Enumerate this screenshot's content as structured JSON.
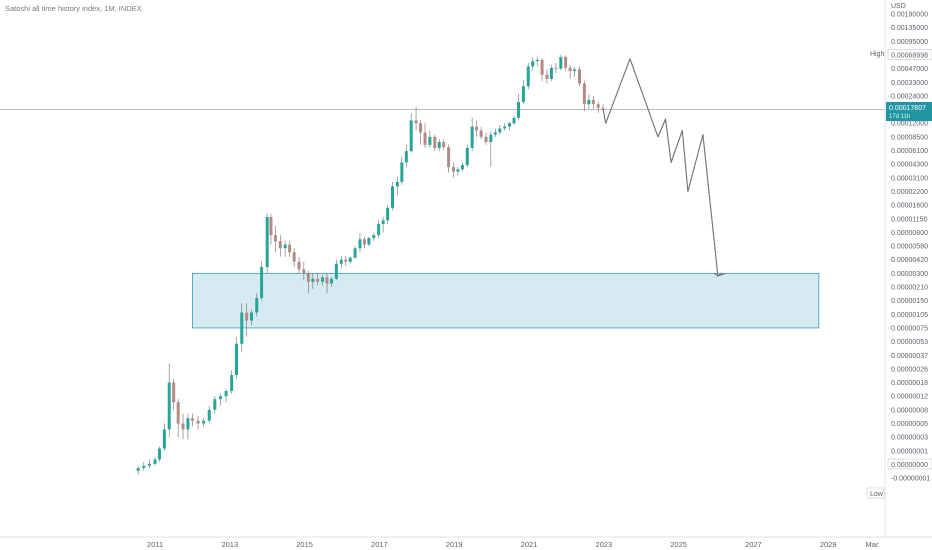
{
  "title": "Satoshi all time history index, 1M, INDEX",
  "currency": "USD",
  "price_tag": {
    "value": "0.00017807",
    "countdown": "17d 11h"
  },
  "high_label": {
    "label": "High",
    "value": "0.00068998"
  },
  "low_label": {
    "label": "Low",
    "value": "0.00000000"
  },
  "colors": {
    "up": "#26a69a",
    "down": "#b58a84",
    "wick": "#6d6d6d",
    "box_fill": "#cfe6ee",
    "box_stroke": "#3a9fae",
    "projection": "#6f6f6f",
    "price_tag_bg": "#2196a3",
    "background": "#ffffff"
  },
  "chart_data": {
    "type": "candlestick",
    "title": "Satoshi all time history index, 1M, INDEX",
    "y_axis_ticks": [
      "0.00190000",
      "0.00135000",
      "0.00095000",
      "0.00068998",
      "0.00047000",
      "0.00033000",
      "0.00024000",
      "0.00017807",
      "0.00012000",
      "0.00008500",
      "0.00006100",
      "0.00004300",
      "0.00003100",
      "0.00002200",
      "0.00001600",
      "0.00001150",
      "0.00000800",
      "0.00000580",
      "0.00000420",
      "0.00000300",
      "0.00000210",
      "0.00000150",
      "0.00000105",
      "0.00000075",
      "0.00000053",
      "0.00000037",
      "0.00000026",
      "0.00000018",
      "0.00000012",
      "0.00000008",
      "0.00000005",
      "0.00000003",
      "0.00000001",
      "0.00000000",
      "-0.00000001"
    ],
    "x_axis_ticks": [
      "2011",
      "2013",
      "2015",
      "2017",
      "2019",
      "2021",
      "2023",
      "2025",
      "2027",
      "2029",
      "Mar"
    ],
    "candles": [
      {
        "t": 2010.55,
        "o": 2e-09,
        "h": 3e-09,
        "l": 1.5e-09,
        "c": 2.5e-09
      },
      {
        "t": 2010.7,
        "o": 2.5e-09,
        "h": 4e-09,
        "l": 2e-09,
        "c": 3e-09
      },
      {
        "t": 2010.85,
        "o": 3e-09,
        "h": 5e-09,
        "l": 2.5e-09,
        "c": 3.5e-09
      },
      {
        "t": 2011.0,
        "o": 3.5e-09,
        "h": 6e-09,
        "l": 3e-09,
        "c": 5e-09
      },
      {
        "t": 2011.12,
        "o": 5e-09,
        "h": 1.4e-08,
        "l": 4e-09,
        "c": 1.2e-08
      },
      {
        "t": 2011.25,
        "o": 1.2e-08,
        "h": 5e-08,
        "l": 1e-08,
        "c": 4e-08
      },
      {
        "t": 2011.38,
        "o": 4e-08,
        "h": 3e-07,
        "l": 3e-08,
        "c": 1.8e-07
      },
      {
        "t": 2011.5,
        "o": 1.8e-07,
        "h": 2e-07,
        "l": 8e-08,
        "c": 1e-07
      },
      {
        "t": 2011.62,
        "o": 1e-07,
        "h": 1.1e-07,
        "l": 3e-08,
        "c": 5e-08
      },
      {
        "t": 2011.75,
        "o": 5e-08,
        "h": 7e-08,
        "l": 2.5e-08,
        "c": 4e-08
      },
      {
        "t": 2011.88,
        "o": 4e-08,
        "h": 7e-08,
        "l": 2.5e-08,
        "c": 6e-08
      },
      {
        "t": 2012.0,
        "o": 6e-08,
        "h": 7e-08,
        "l": 4.5e-08,
        "c": 5.5e-08
      },
      {
        "t": 2012.15,
        "o": 5.5e-08,
        "h": 6.5e-08,
        "l": 4e-08,
        "c": 5e-08
      },
      {
        "t": 2012.3,
        "o": 5e-08,
        "h": 6e-08,
        "l": 4.5e-08,
        "c": 5.5e-08
      },
      {
        "t": 2012.45,
        "o": 5.5e-08,
        "h": 9e-08,
        "l": 5e-08,
        "c": 8e-08
      },
      {
        "t": 2012.6,
        "o": 8e-08,
        "h": 1.2e-07,
        "l": 7e-08,
        "c": 1.1e-07
      },
      {
        "t": 2012.75,
        "o": 1.1e-07,
        "h": 1.3e-07,
        "l": 9e-08,
        "c": 1.2e-07
      },
      {
        "t": 2012.9,
        "o": 1.2e-07,
        "h": 1.5e-07,
        "l": 1e-07,
        "c": 1.4e-07
      },
      {
        "t": 2013.05,
        "o": 1.4e-07,
        "h": 2.5e-07,
        "l": 1.3e-07,
        "c": 2.2e-07
      },
      {
        "t": 2013.18,
        "o": 2.2e-07,
        "h": 6e-07,
        "l": 2e-07,
        "c": 5e-07
      },
      {
        "t": 2013.32,
        "o": 5e-07,
        "h": 1.4e-06,
        "l": 4e-07,
        "c": 1.1e-06
      },
      {
        "t": 2013.45,
        "o": 1.1e-06,
        "h": 1.4e-06,
        "l": 6e-07,
        "c": 9e-07
      },
      {
        "t": 2013.58,
        "o": 9e-07,
        "h": 1.2e-06,
        "l": 8e-07,
        "c": 1.1e-06
      },
      {
        "t": 2013.72,
        "o": 1.1e-06,
        "h": 1.8e-06,
        "l": 1e-06,
        "c": 1.6e-06
      },
      {
        "t": 2013.85,
        "o": 1.6e-06,
        "h": 4e-06,
        "l": 1.5e-06,
        "c": 3.5e-06
      },
      {
        "t": 2014.0,
        "o": 3.5e-06,
        "h": 1.3e-05,
        "l": 3e-06,
        "c": 1.2e-05
      },
      {
        "t": 2014.1,
        "o": 1.2e-05,
        "h": 1.3e-05,
        "l": 6e-06,
        "c": 7.5e-06
      },
      {
        "t": 2014.22,
        "o": 7.5e-06,
        "h": 9.5e-06,
        "l": 5e-06,
        "c": 6.5e-06
      },
      {
        "t": 2014.35,
        "o": 6.5e-06,
        "h": 7.5e-06,
        "l": 4.5e-06,
        "c": 5.5e-06
      },
      {
        "t": 2014.48,
        "o": 5.5e-06,
        "h": 6.5e-06,
        "l": 4.5e-06,
        "c": 6e-06
      },
      {
        "t": 2014.6,
        "o": 6e-06,
        "h": 6.5e-06,
        "l": 4.5e-06,
        "c": 5e-06
      },
      {
        "t": 2014.72,
        "o": 5e-06,
        "h": 5.5e-06,
        "l": 3.5e-06,
        "c": 4e-06
      },
      {
        "t": 2014.85,
        "o": 4e-06,
        "h": 4.5e-06,
        "l": 3e-06,
        "c": 3.3e-06
      },
      {
        "t": 2014.98,
        "o": 3.3e-06,
        "h": 4e-06,
        "l": 2.5e-06,
        "c": 3e-06
      },
      {
        "t": 2015.1,
        "o": 3e-06,
        "h": 3.2e-06,
        "l": 1.8e-06,
        "c": 2.4e-06
      },
      {
        "t": 2015.22,
        "o": 2.4e-06,
        "h": 3e-06,
        "l": 2e-06,
        "c": 2.6e-06
      },
      {
        "t": 2015.35,
        "o": 2.6e-06,
        "h": 3e-06,
        "l": 2.2e-06,
        "c": 2.4e-06
      },
      {
        "t": 2015.48,
        "o": 2.4e-06,
        "h": 2.9e-06,
        "l": 2.2e-06,
        "c": 2.7e-06
      },
      {
        "t": 2015.6,
        "o": 2.7e-06,
        "h": 3e-06,
        "l": 1.8e-06,
        "c": 2.3e-06
      },
      {
        "t": 2015.72,
        "o": 2.3e-06,
        "h": 2.7e-06,
        "l": 2.1e-06,
        "c": 2.6e-06
      },
      {
        "t": 2015.85,
        "o": 2.6e-06,
        "h": 4.2e-06,
        "l": 2.5e-06,
        "c": 3.8e-06
      },
      {
        "t": 2015.98,
        "o": 3.8e-06,
        "h": 4.6e-06,
        "l": 3.4e-06,
        "c": 4.2e-06
      },
      {
        "t": 2016.1,
        "o": 4.2e-06,
        "h": 4.6e-06,
        "l": 3.6e-06,
        "c": 4e-06
      },
      {
        "t": 2016.22,
        "o": 4e-06,
        "h": 4.5e-06,
        "l": 3.8e-06,
        "c": 4.4e-06
      },
      {
        "t": 2016.35,
        "o": 4.4e-06,
        "h": 5.8e-06,
        "l": 4.3e-06,
        "c": 5.5e-06
      },
      {
        "t": 2016.48,
        "o": 5.5e-06,
        "h": 7.8e-06,
        "l": 5e-06,
        "c": 6.8e-06
      },
      {
        "t": 2016.6,
        "o": 6.8e-06,
        "h": 7.2e-06,
        "l": 5.5e-06,
        "c": 6e-06
      },
      {
        "t": 2016.72,
        "o": 6e-06,
        "h": 7.2e-06,
        "l": 5.8e-06,
        "c": 7e-06
      },
      {
        "t": 2016.85,
        "o": 7e-06,
        "h": 8e-06,
        "l": 6.5e-06,
        "c": 7.5e-06
      },
      {
        "t": 2016.98,
        "o": 7.5e-06,
        "h": 1.1e-05,
        "l": 7e-06,
        "c": 1e-05
      },
      {
        "t": 2017.1,
        "o": 1e-05,
        "h": 1.2e-05,
        "l": 8e-06,
        "c": 1.1e-05
      },
      {
        "t": 2017.22,
        "o": 1.1e-05,
        "h": 1.6e-05,
        "l": 1e-05,
        "c": 1.5e-05
      },
      {
        "t": 2017.35,
        "o": 1.5e-05,
        "h": 2.8e-05,
        "l": 1.4e-05,
        "c": 2.5e-05
      },
      {
        "t": 2017.48,
        "o": 2.5e-05,
        "h": 3.2e-05,
        "l": 2e-05,
        "c": 2.8e-05
      },
      {
        "t": 2017.6,
        "o": 2.8e-05,
        "h": 5.2e-05,
        "l": 2.6e-05,
        "c": 4.5e-05
      },
      {
        "t": 2017.72,
        "o": 4.5e-05,
        "h": 7e-05,
        "l": 4e-05,
        "c": 6e-05
      },
      {
        "t": 2017.85,
        "o": 6e-05,
        "h": 0.00016,
        "l": 5.8e-05,
        "c": 0.00013
      },
      {
        "t": 2017.98,
        "o": 0.00013,
        "h": 0.00019,
        "l": 0.0001,
        "c": 0.00012
      },
      {
        "t": 2018.1,
        "o": 0.00012,
        "h": 0.00013,
        "l": 7e-05,
        "c": 9.5e-05
      },
      {
        "t": 2018.22,
        "o": 9.5e-05,
        "h": 0.00012,
        "l": 6.5e-05,
        "c": 7e-05
      },
      {
        "t": 2018.35,
        "o": 7e-05,
        "h": 0.0001,
        "l": 6.5e-05,
        "c": 8.5e-05
      },
      {
        "t": 2018.48,
        "o": 8.5e-05,
        "h": 9e-05,
        "l": 6e-05,
        "c": 6.5e-05
      },
      {
        "t": 2018.6,
        "o": 6.5e-05,
        "h": 8e-05,
        "l": 6e-05,
        "c": 7.5e-05
      },
      {
        "t": 2018.72,
        "o": 7.5e-05,
        "h": 8e-05,
        "l": 6.2e-05,
        "c": 6.6e-05
      },
      {
        "t": 2018.85,
        "o": 6.6e-05,
        "h": 7e-05,
        "l": 3.5e-05,
        "c": 4e-05
      },
      {
        "t": 2018.98,
        "o": 4e-05,
        "h": 4.5e-05,
        "l": 3.1e-05,
        "c": 3.6e-05
      },
      {
        "t": 2019.1,
        "o": 3.6e-05,
        "h": 4e-05,
        "l": 3.3e-05,
        "c": 3.8e-05
      },
      {
        "t": 2019.22,
        "o": 3.8e-05,
        "h": 4.5e-05,
        "l": 3.6e-05,
        "c": 4.2e-05
      },
      {
        "t": 2019.35,
        "o": 4.2e-05,
        "h": 7e-05,
        "l": 4e-05,
        "c": 6.5e-05
      },
      {
        "t": 2019.48,
        "o": 6.5e-05,
        "h": 0.00014,
        "l": 6e-05,
        "c": 0.00011
      },
      {
        "t": 2019.6,
        "o": 0.00011,
        "h": 0.00013,
        "l": 8.5e-05,
        "c": 0.0001
      },
      {
        "t": 2019.72,
        "o": 0.0001,
        "h": 0.00011,
        "l": 8e-05,
        "c": 8.5e-05
      },
      {
        "t": 2019.85,
        "o": 8.5e-05,
        "h": 9.5e-05,
        "l": 7e-05,
        "c": 7.5e-05
      },
      {
        "t": 2019.98,
        "o": 7.5e-05,
        "h": 9.8e-05,
        "l": 4e-05,
        "c": 9e-05
      },
      {
        "t": 2020.1,
        "o": 9e-05,
        "h": 0.000105,
        "l": 8.5e-05,
        "c": 9.5e-05
      },
      {
        "t": 2020.22,
        "o": 9.5e-05,
        "h": 0.000115,
        "l": 9e-05,
        "c": 0.000105
      },
      {
        "t": 2020.35,
        "o": 0.000105,
        "h": 0.00012,
        "l": 0.0001,
        "c": 0.00011
      },
      {
        "t": 2020.48,
        "o": 0.00011,
        "h": 0.000125,
        "l": 0.0001,
        "c": 0.00012
      },
      {
        "t": 2020.6,
        "o": 0.00012,
        "h": 0.00015,
        "l": 0.000115,
        "c": 0.00014
      },
      {
        "t": 2020.72,
        "o": 0.00014,
        "h": 0.00025,
        "l": 0.00013,
        "c": 0.00021
      },
      {
        "t": 2020.85,
        "o": 0.00021,
        "h": 0.00035,
        "l": 0.0002,
        "c": 0.0003
      },
      {
        "t": 2020.98,
        "o": 0.0003,
        "h": 0.00055,
        "l": 0.00028,
        "c": 0.0005
      },
      {
        "t": 2021.1,
        "o": 0.0005,
        "h": 0.00065,
        "l": 0.00045,
        "c": 0.00058
      },
      {
        "t": 2021.22,
        "o": 0.00058,
        "h": 0.00066,
        "l": 0.0005,
        "c": 0.0006
      },
      {
        "t": 2021.35,
        "o": 0.0006,
        "h": 0.00062,
        "l": 0.00034,
        "c": 0.0004
      },
      {
        "t": 2021.48,
        "o": 0.0004,
        "h": 0.00046,
        "l": 0.00032,
        "c": 0.00036
      },
      {
        "t": 2021.6,
        "o": 0.00036,
        "h": 0.00052,
        "l": 0.00034,
        "c": 0.00048
      },
      {
        "t": 2021.72,
        "o": 0.00048,
        "h": 0.00055,
        "l": 0.00042,
        "c": 0.00047
      },
      {
        "t": 2021.85,
        "o": 0.00047,
        "h": 0.00069,
        "l": 0.00045,
        "c": 0.00065
      },
      {
        "t": 2021.98,
        "o": 0.00065,
        "h": 0.00068,
        "l": 0.00045,
        "c": 0.00048
      },
      {
        "t": 2022.1,
        "o": 0.00048,
        "h": 0.00052,
        "l": 0.00036,
        "c": 0.00044
      },
      {
        "t": 2022.22,
        "o": 0.00044,
        "h": 0.00049,
        "l": 0.00038,
        "c": 0.00046
      },
      {
        "t": 2022.35,
        "o": 0.00046,
        "h": 0.0005,
        "l": 0.0003,
        "c": 0.00032
      },
      {
        "t": 2022.48,
        "o": 0.00032,
        "h": 0.00034,
        "l": 0.00017,
        "c": 0.0002
      },
      {
        "t": 2022.6,
        "o": 0.0002,
        "h": 0.00025,
        "l": 0.00018,
        "c": 0.00022
      },
      {
        "t": 2022.72,
        "o": 0.00022,
        "h": 0.00024,
        "l": 0.00018,
        "c": 0.0002
      },
      {
        "t": 2022.85,
        "o": 0.0002,
        "h": 0.00021,
        "l": 0.00016,
        "c": 0.000185
      },
      {
        "t": 2022.98,
        "o": 0.000185,
        "h": 0.0002,
        "l": 0.00017,
        "c": 0.00017807
      }
    ],
    "projection_path": [
      {
        "t": 2022.98,
        "v": 0.00017807
      },
      {
        "t": 2023.05,
        "v": 0.00012
      },
      {
        "t": 2023.7,
        "v": 0.00062
      },
      {
        "t": 2024.45,
        "v": 8.5e-05
      },
      {
        "t": 2024.65,
        "v": 0.000135
      },
      {
        "t": 2024.8,
        "v": 4.5e-05
      },
      {
        "t": 2025.1,
        "v": 0.0001
      },
      {
        "t": 2025.25,
        "v": 2.2e-05
      },
      {
        "t": 2025.65,
        "v": 9e-05
      },
      {
        "t": 2026.05,
        "v": 2.8e-06
      },
      {
        "t": 2026.25,
        "v": 3e-06
      }
    ],
    "support_zone": {
      "t_start": 2012.0,
      "t_end": 2028.75,
      "v_top": 3e-06,
      "v_bottom": 7.5e-07
    },
    "current_price": 0.00017807
  }
}
